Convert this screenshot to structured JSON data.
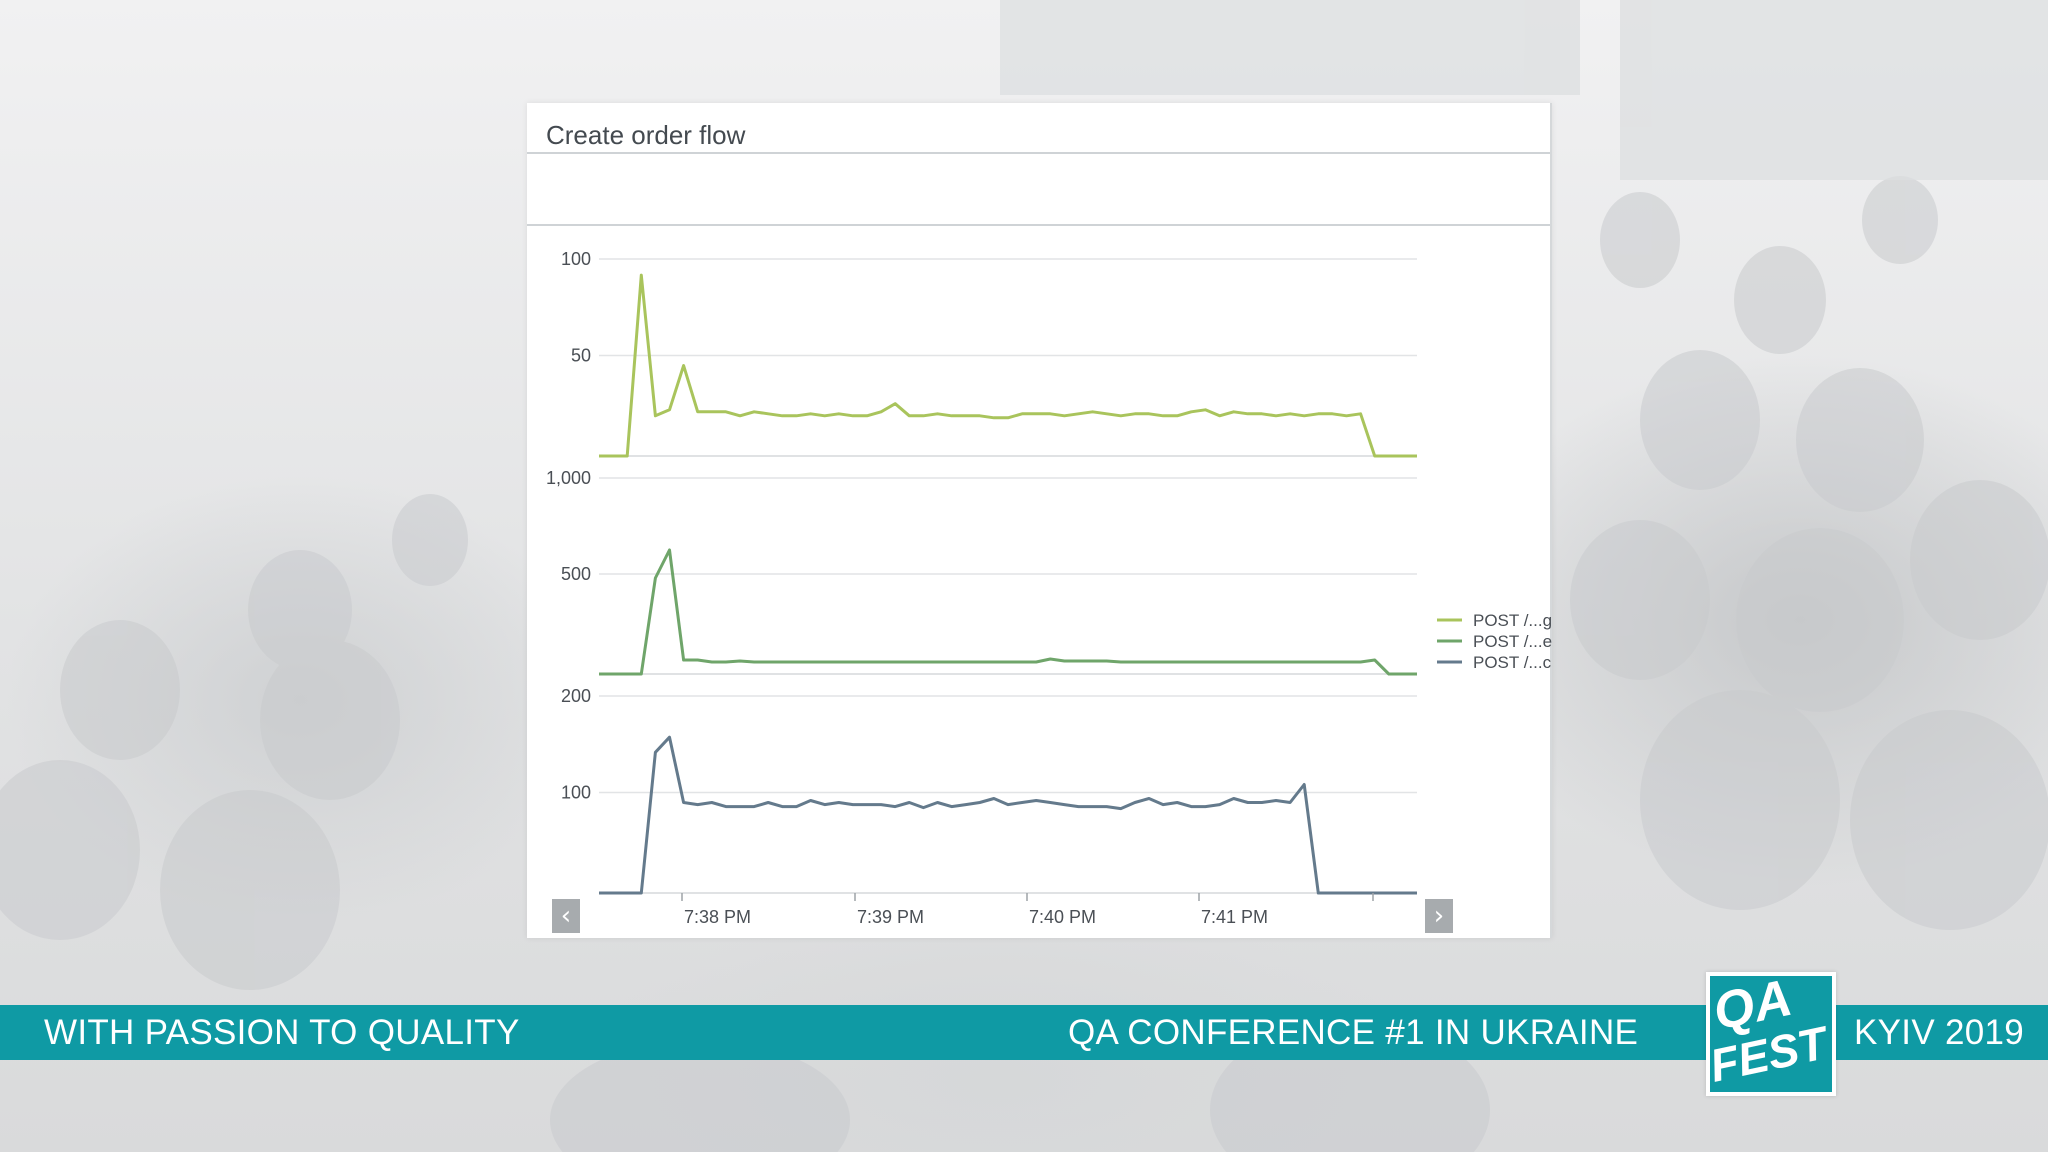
{
  "panel": {
    "title": "Create order flow"
  },
  "banner": {
    "left_text": "WITH PASSION TO QUALITY",
    "middle_text": "QA CONFERENCE #1 IN UKRAINE",
    "right_text": "KYIV 2019",
    "color": "#0f9aa4"
  },
  "logo": {
    "line1": "QA",
    "line2": "FEST"
  },
  "nav": {
    "prev_icon": "chevron-left-icon",
    "next_icon": "chevron-right-icon"
  },
  "chart_data": {
    "type": "line",
    "layout": "stacked-small-multiples",
    "x_ticks": [
      "7:38 PM",
      "7:39 PM",
      "7:40 PM",
      "7:41 PM"
    ],
    "grid": true,
    "legend": {
      "placement": "right",
      "entries": [
        "POST /...g",
        "POST /...e",
        "POST /...c"
      ]
    },
    "panels": [
      {
        "series_name": "POST /...g",
        "color": "#a9c45c",
        "y_ticks": [
          "100",
          "50"
        ],
        "y_tick_values": [
          100,
          50
        ],
        "ylim": [
          0,
          100
        ],
        "values": [
          0,
          0,
          0,
          90,
          20,
          23,
          45,
          22,
          22,
          22,
          20,
          22,
          21,
          20,
          20,
          21,
          20,
          21,
          20,
          20,
          22,
          26,
          20,
          20,
          21,
          20,
          20,
          20,
          19,
          19,
          21,
          21,
          21,
          20,
          21,
          22,
          21,
          20,
          21,
          21,
          20,
          20,
          22,
          23,
          20,
          22,
          21,
          21,
          20,
          21,
          20,
          21,
          21,
          20,
          21,
          0,
          0,
          0,
          0
        ]
      },
      {
        "series_name": "POST /...e",
        "color": "#6fa56a",
        "y_ticks": [
          "1,000",
          "500"
        ],
        "y_tick_values": [
          1000,
          500
        ],
        "ylim": [
          0,
          1000
        ],
        "values": [
          0,
          0,
          0,
          0,
          480,
          620,
          70,
          70,
          60,
          60,
          65,
          60,
          60,
          60,
          60,
          60,
          60,
          60,
          60,
          60,
          60,
          60,
          60,
          60,
          60,
          60,
          60,
          60,
          60,
          60,
          60,
          60,
          75,
          65,
          65,
          65,
          65,
          60,
          60,
          60,
          60,
          60,
          60,
          60,
          60,
          60,
          60,
          60,
          60,
          60,
          60,
          60,
          60,
          60,
          60,
          70,
          0,
          0,
          0
        ]
      },
      {
        "series_name": "POST /...c",
        "color": "#647a8c",
        "y_ticks": [
          "200",
          "100"
        ],
        "y_tick_values": [
          200,
          100
        ],
        "ylim": [
          0,
          200
        ],
        "values": [
          0,
          0,
          0,
          0,
          140,
          155,
          90,
          88,
          90,
          86,
          86,
          86,
          90,
          86,
          86,
          92,
          88,
          90,
          88,
          88,
          88,
          86,
          90,
          85,
          90,
          86,
          88,
          90,
          94,
          88,
          90,
          92,
          90,
          88,
          86,
          86,
          86,
          84,
          90,
          94,
          88,
          90,
          86,
          86,
          88,
          94,
          90,
          90,
          92,
          90,
          108,
          0,
          0,
          0,
          0,
          0,
          0,
          0,
          0
        ]
      }
    ]
  }
}
